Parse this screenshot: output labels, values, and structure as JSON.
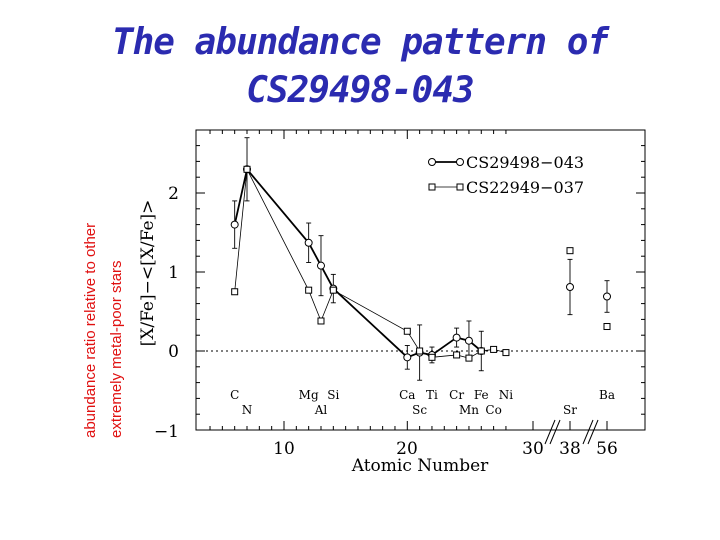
{
  "title_line1": "The abundance pattern of",
  "title_line2": "CS29498-043",
  "side_label_line1": "abundance ratio relative to other",
  "side_label_line2": "extremely metal-poor stars",
  "colors": {
    "title": "#2b2bb0",
    "side_label": "#e01010"
  },
  "chart_data": {
    "type": "line",
    "xlabel": "Atomic Number",
    "ylabel": "[X/Fe]−<[X/Fe]>",
    "ylim": [
      -1,
      2.7
    ],
    "y_ticks": [
      "−1",
      "0",
      "1",
      "2"
    ],
    "x_ticks": [
      "10",
      "20",
      "30",
      "38",
      "56"
    ],
    "reference_line_y": 0,
    "x_axis_break_after": 27,
    "elements_top": [
      {
        "symbol": "C",
        "z": 6
      },
      {
        "symbol": "Mg",
        "z": 12
      },
      {
        "symbol": "Si",
        "z": 14
      },
      {
        "symbol": "Ca",
        "z": 20
      },
      {
        "symbol": "Ti",
        "z": 22
      },
      {
        "symbol": "Cr",
        "z": 24
      },
      {
        "symbol": "Fe",
        "z": 26
      },
      {
        "symbol": "Ni",
        "z": 28
      },
      {
        "symbol": "Ba",
        "z": 56
      }
    ],
    "elements_bottom": [
      {
        "symbol": "N",
        "z": 7
      },
      {
        "symbol": "Al",
        "z": 13
      },
      {
        "symbol": "Sc",
        "z": 21
      },
      {
        "symbol": "Mn",
        "z": 25
      },
      {
        "symbol": "Co",
        "z": 27
      },
      {
        "symbol": "Sr",
        "z": 38
      }
    ],
    "legend_position": "top-right",
    "series": [
      {
        "name": "CS29498−043",
        "marker": "circle",
        "line": "thick",
        "points": [
          {
            "z": 6,
            "y": 1.6,
            "err": 0.3
          },
          {
            "z": 7,
            "y": 2.3,
            "err": 0.4
          },
          {
            "z": 12,
            "y": 1.37,
            "err": 0.25
          },
          {
            "z": 13,
            "y": 1.08,
            "err": 0.38
          },
          {
            "z": 14,
            "y": 0.79,
            "err": 0.18
          },
          {
            "z": 20,
            "y": -0.08,
            "err": 0.15
          },
          {
            "z": 21,
            "y": -0.02,
            "err": 0.35
          },
          {
            "z": 22,
            "y": -0.05,
            "err": 0.1
          },
          {
            "z": 24,
            "y": 0.17,
            "err": 0.12
          },
          {
            "z": 25,
            "y": 0.13,
            "err": 0.25
          },
          {
            "z": 26,
            "y": 0.0,
            "err": 0.25
          }
        ],
        "unconnected_points": [
          {
            "z": 38,
            "y": 0.81,
            "err": 0.35
          },
          {
            "z": 56,
            "y": 0.69,
            "err": 0.2
          }
        ]
      },
      {
        "name": "CS22949−037",
        "marker": "square",
        "line": "thin",
        "points": [
          {
            "z": 6,
            "y": 0.75
          },
          {
            "z": 7,
            "y": 2.3
          },
          {
            "z": 12,
            "y": 0.77
          },
          {
            "z": 13,
            "y": 0.38
          },
          {
            "z": 14,
            "y": 0.77
          },
          {
            "z": 20,
            "y": 0.25
          },
          {
            "z": 21,
            "y": 0.0
          },
          {
            "z": 22,
            "y": -0.08
          },
          {
            "z": 24,
            "y": -0.05
          },
          {
            "z": 25,
            "y": -0.09
          },
          {
            "z": 26,
            "y": 0.0
          },
          {
            "z": 27,
            "y": 0.02
          },
          {
            "z": 28,
            "y": -0.02
          }
        ],
        "unconnected_points": [
          {
            "z": 38,
            "y": 1.27
          },
          {
            "z": 56,
            "y": 0.31
          }
        ]
      }
    ]
  }
}
